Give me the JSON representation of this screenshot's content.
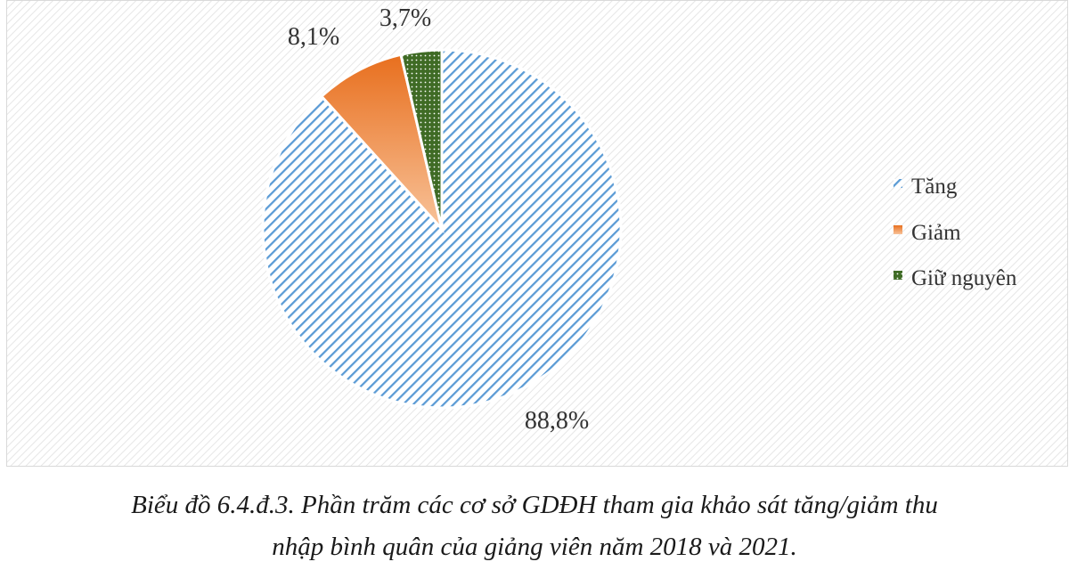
{
  "chart_data": {
    "type": "pie",
    "categories": [
      "Tăng",
      "Giảm",
      "Giữ nguyên"
    ],
    "values": [
      88.8,
      8.1,
      3.7
    ],
    "data_labels": [
      "88,8%",
      "8,1%",
      "3,7%"
    ],
    "legend": {
      "position": "right",
      "entries": [
        "Tăng",
        "Giảm",
        "Giữ nguyên"
      ]
    },
    "colors": {
      "Tăng": "#5b9bd5",
      "Giảm": "#ed7d31",
      "Giữ nguyên": "#548235"
    },
    "fills": {
      "Tăng": "diagonal-stripes",
      "Giảm": "gradient",
      "Giữ nguyên": "dotted"
    },
    "background": "hatched-light-gray"
  },
  "caption": {
    "line1": "Biểu đồ 6.4.đ.3. Phần trăm các cơ sở GDĐH tham gia khảo sát tăng/giảm thu",
    "line2": "nhập bình quân của giảng viên năm 2018 và 2021."
  }
}
